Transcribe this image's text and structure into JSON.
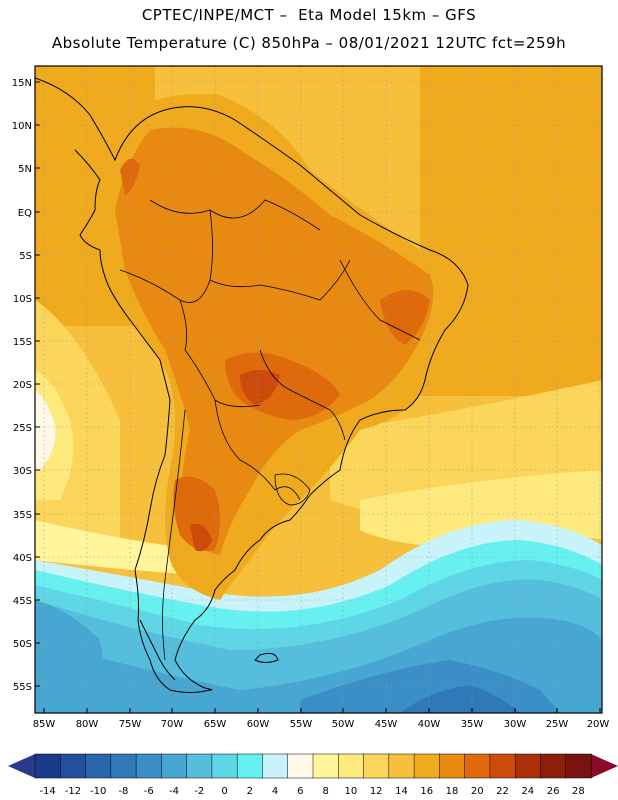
{
  "header": {
    "line1": "CPTEC/INPE/MCT –  Eta Model 15km – GFS",
    "line2": "Absolute Temperature (C) 850hPa – 08/01/2021 12UTC fct=259h"
  },
  "axes": {
    "lat_labels": [
      "15N",
      "10N",
      "5N",
      "EQ",
      "5S",
      "10S",
      "15S",
      "20S",
      "25S",
      "30S",
      "35S",
      "40S",
      "45S",
      "50S",
      "55S"
    ],
    "lon_labels": [
      "85W",
      "80W",
      "75W",
      "70W",
      "65W",
      "60W",
      "55W",
      "50W",
      "45W",
      "40W",
      "35W",
      "30W",
      "25W",
      "20W"
    ]
  },
  "colorbar": {
    "labels": [
      "-14",
      "-12",
      "-10",
      "-8",
      "-6",
      "-4",
      "-2",
      "0",
      "2",
      "4",
      "6",
      "8",
      "10",
      "12",
      "14",
      "16",
      "18",
      "20",
      "22",
      "24",
      "26",
      "28"
    ],
    "colors": [
      "#1a3a8c",
      "#23509e",
      "#2a66ad",
      "#3079b9",
      "#3a8fc6",
      "#48a6d3",
      "#55bedd",
      "#5fd6e6",
      "#66f0f0",
      "#c8f3fb",
      "#fff8e6",
      "#fff59a",
      "#fde97c",
      "#fbd65a",
      "#f6c03d",
      "#f0aa1e",
      "#e88a12",
      "#de6a0c",
      "#cc4a0a",
      "#ad2f08",
      "#8e1e0a",
      "#7a1210"
    ],
    "low_arrow_color": "#2a3a8a",
    "high_arrow_color": "#8a0a2a"
  }
}
